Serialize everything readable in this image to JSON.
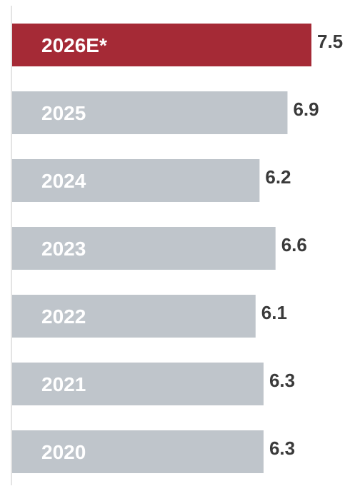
{
  "chart_data": {
    "type": "bar",
    "orientation": "horizontal",
    "categories": [
      "2026E*",
      "2025",
      "2024",
      "2023",
      "2022",
      "2021",
      "2020"
    ],
    "values": [
      7.5,
      6.9,
      6.2,
      6.6,
      6.1,
      6.3,
      6.3
    ],
    "value_labels": [
      "7.5",
      "6.9",
      "6.2",
      "6.6",
      "6.1",
      "6.3",
      "6.3"
    ],
    "highlight_index": 0,
    "colors": {
      "highlight": "#a52a36",
      "default": "#bfc5cb",
      "axis": "#c8c8c8",
      "category_text": "#ffffff",
      "value_text": "#3a3a3a"
    },
    "xlim": [
      0,
      7.5
    ],
    "grid": false,
    "legend": "none"
  }
}
